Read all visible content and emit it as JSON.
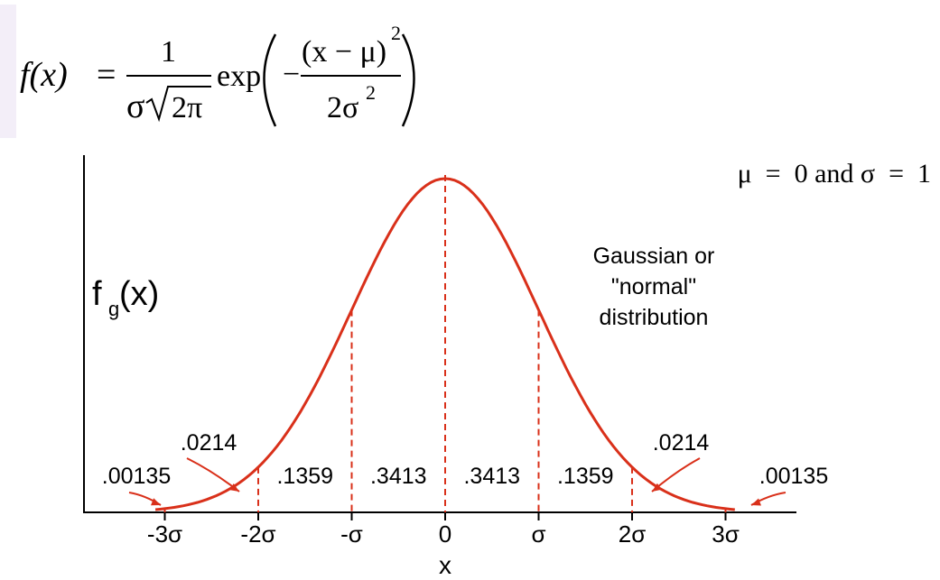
{
  "formula": {
    "lhs": "f(x)",
    "equals": "=",
    "numerator": "1",
    "sigma": "σ",
    "root_arg": "2π",
    "exp": "exp",
    "minus": "−",
    "exp_numerator": "(x − μ)",
    "square": "2",
    "exp_denominator": "2σ",
    "denominator_square": "2"
  },
  "params_label": "μ  =  0 and σ  =  1",
  "ylabel": {
    "main": "f",
    "sub": "g",
    "rest": "(x)"
  },
  "xlabel": "x",
  "curve_label": [
    "Gaussian or",
    "\"normal\"",
    "distribution"
  ],
  "colors": {
    "curve": "#d9301a",
    "axis": "#000000",
    "formula_highlight": "#f3eef8"
  },
  "chart_data": {
    "type": "area",
    "x_ticks": [
      {
        "value": -3,
        "label": "-3σ"
      },
      {
        "value": -2,
        "label": "-2σ"
      },
      {
        "value": -1,
        "label": "-σ"
      },
      {
        "value": 0,
        "label": "0"
      },
      {
        "value": 1,
        "label": "σ"
      },
      {
        "value": 2,
        "label": "2σ"
      },
      {
        "value": 3,
        "label": "3σ"
      }
    ],
    "region_probabilities": [
      {
        "from": -3,
        "to": -2,
        "label": ".0214"
      },
      {
        "from": -2,
        "to": -1,
        "label": ".1359"
      },
      {
        "from": -1,
        "to": 0,
        "label": ".3413"
      },
      {
        "from": 0,
        "to": 1,
        "label": ".3413"
      },
      {
        "from": 1,
        "to": 2,
        "label": ".1359"
      },
      {
        "from": 2,
        "to": 3,
        "label": ".0214"
      }
    ],
    "tail_probabilities": [
      {
        "side": "left",
        "beyond": -3,
        "label": ".00135"
      },
      {
        "side": "right",
        "beyond": 3,
        "label": ".00135"
      }
    ],
    "mean": 0,
    "sd": 1,
    "grid": false
  }
}
